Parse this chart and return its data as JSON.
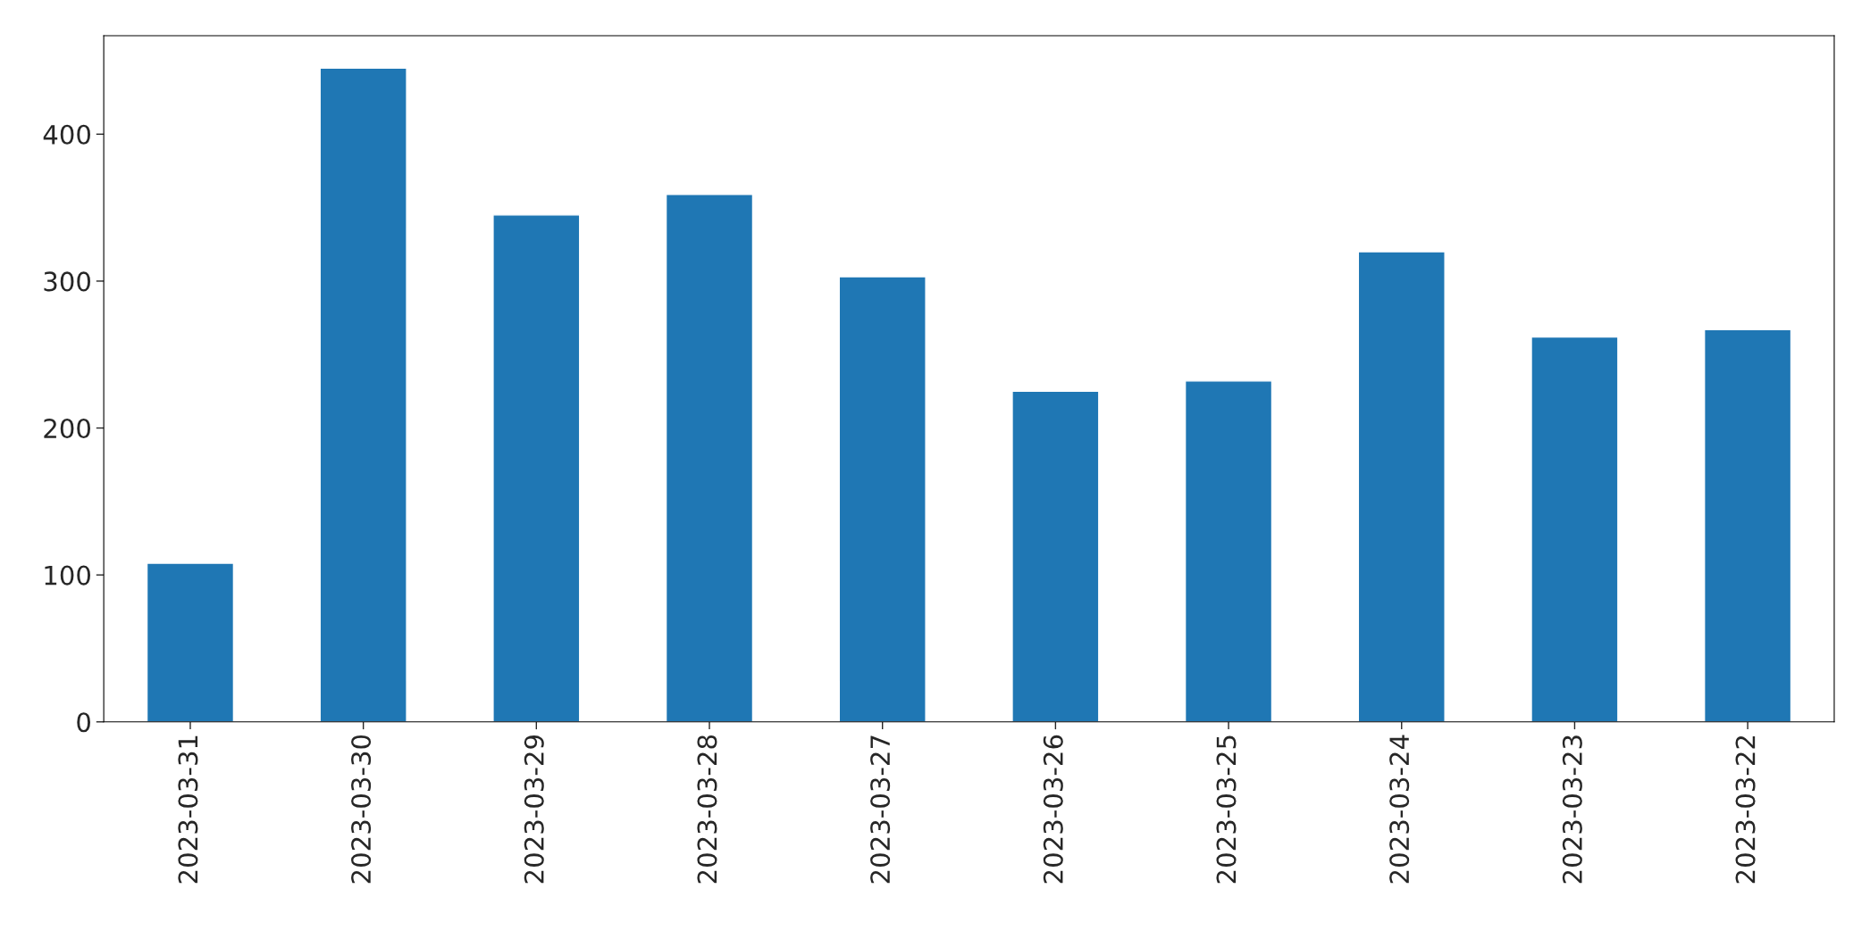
{
  "chart_data": {
    "type": "bar",
    "categories": [
      "2023-03-31",
      "2023-03-30",
      "2023-03-29",
      "2023-03-28",
      "2023-03-27",
      "2023-03-26",
      "2023-03-25",
      "2023-03-24",
      "2023-03-23",
      "2023-03-22"
    ],
    "values": [
      108,
      445,
      345,
      359,
      303,
      225,
      232,
      320,
      262,
      267
    ],
    "color": "#1f77b4",
    "ylim": [
      0,
      467
    ],
    "yticks": [
      0,
      100,
      200,
      300,
      400
    ],
    "grid": false,
    "legend": false
  }
}
